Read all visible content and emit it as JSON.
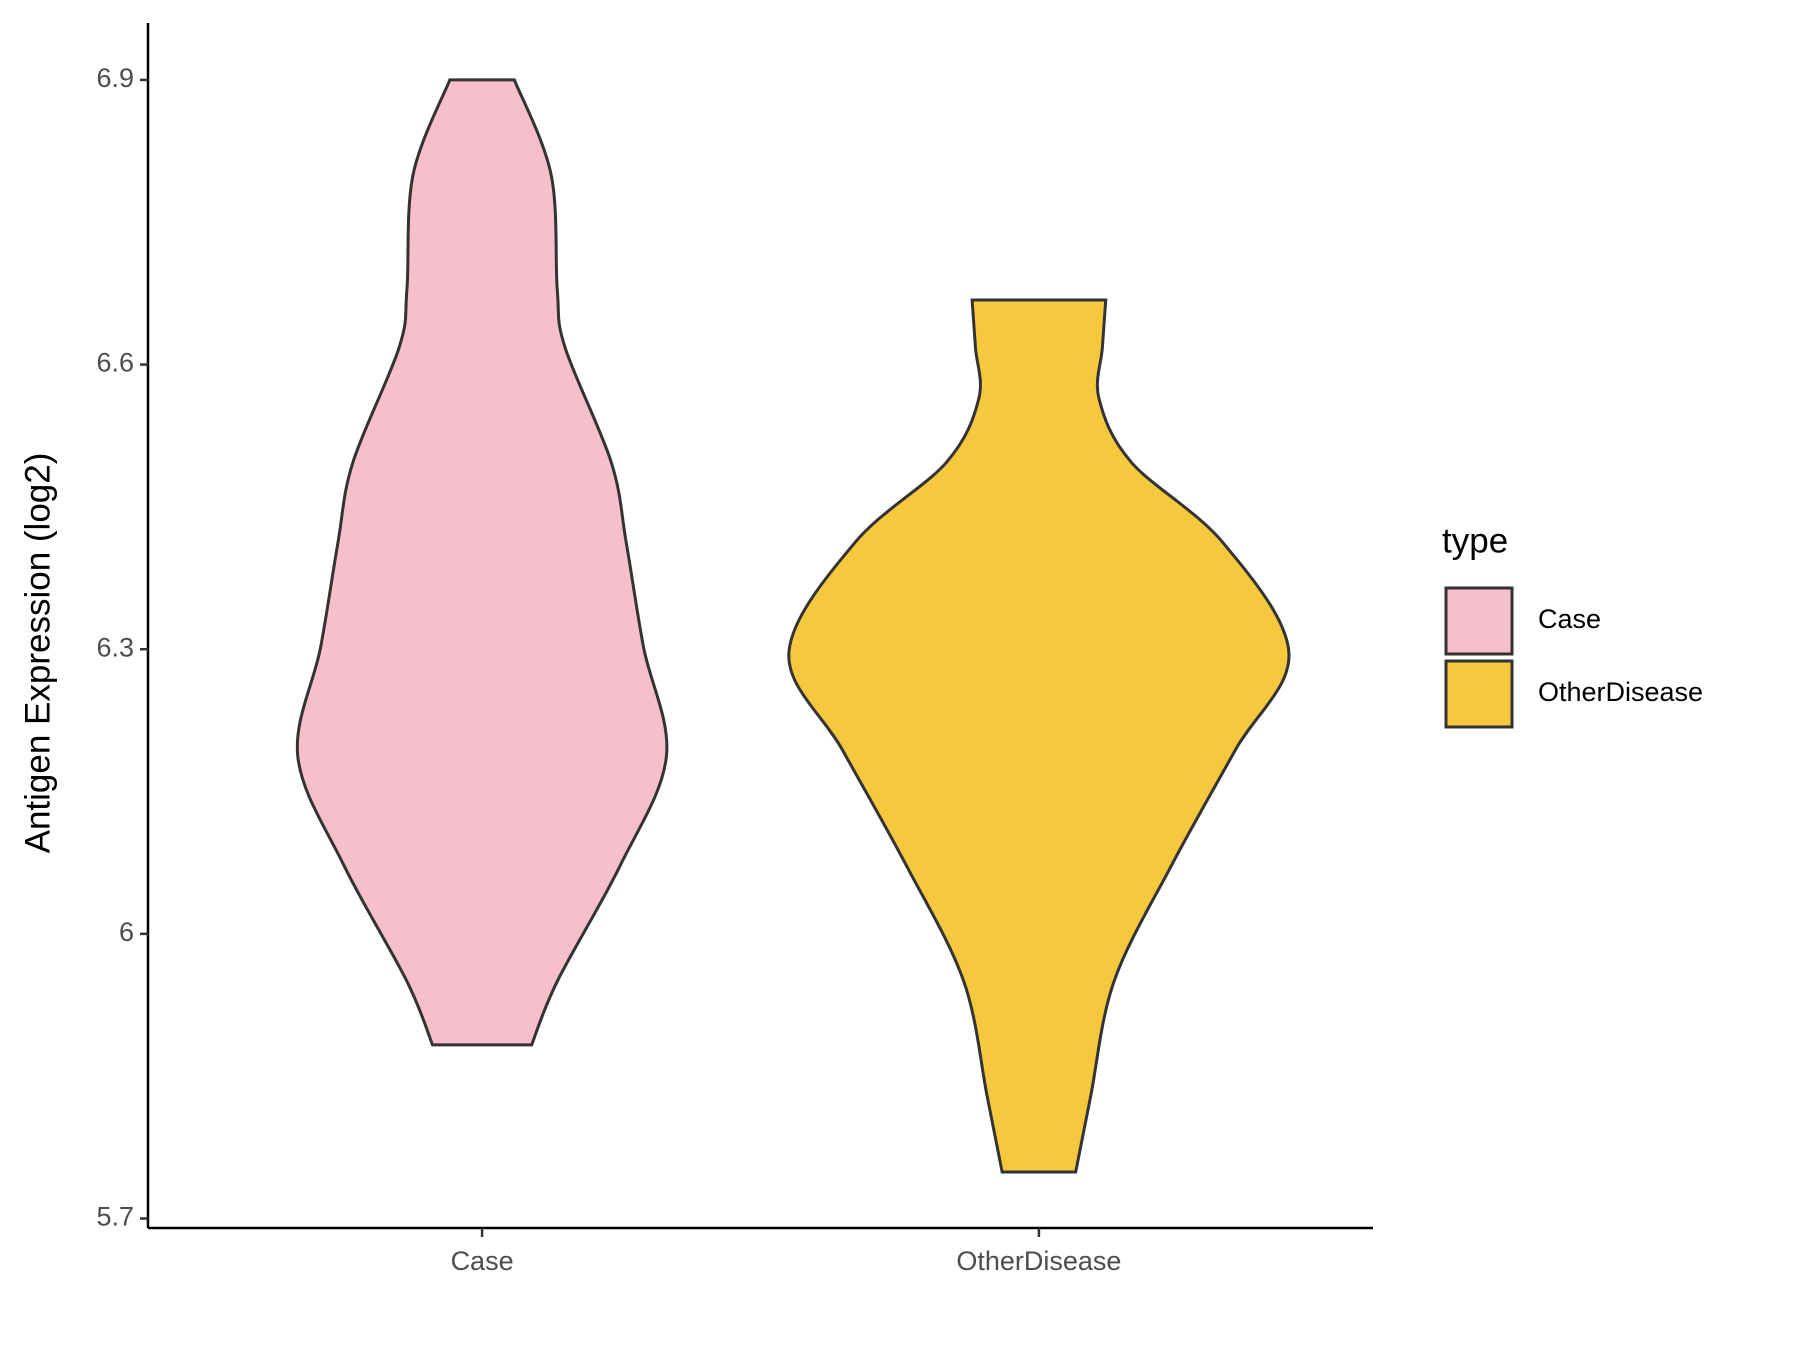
{
  "chart_data": {
    "type": "violin",
    "y_label": "Antigen Expression (log2)",
    "categories": [
      "Case",
      "OtherDisease"
    ],
    "ylim": [
      5.69,
      6.96
    ],
    "yticks": [
      5.7,
      6.0,
      6.3,
      6.6,
      6.9
    ],
    "legend_title": "type",
    "legend_position": "right",
    "series": [
      {
        "name": "Case",
        "color": "#f7bfcb",
        "y": [
          6.9,
          6.8,
          6.679,
          6.618,
          6.497,
          6.412,
          6.302,
          6.187,
          6.072,
          5.95,
          5.883
        ],
        "half_width": [
          0.058,
          0.124,
          0.135,
          0.149,
          0.232,
          0.259,
          0.29,
          0.331,
          0.248,
          0.135,
          0.089
        ]
      },
      {
        "name": "OtherDisease",
        "color": "#f5c83e",
        "y": [
          6.668,
          6.618,
          6.564,
          6.497,
          6.412,
          6.296,
          6.193,
          6.072,
          5.95,
          5.829,
          5.749
        ],
        "half_width": [
          0.12,
          0.114,
          0.108,
          0.166,
          0.331,
          0.449,
          0.352,
          0.238,
          0.135,
          0.093,
          0.066
        ]
      }
    ]
  }
}
